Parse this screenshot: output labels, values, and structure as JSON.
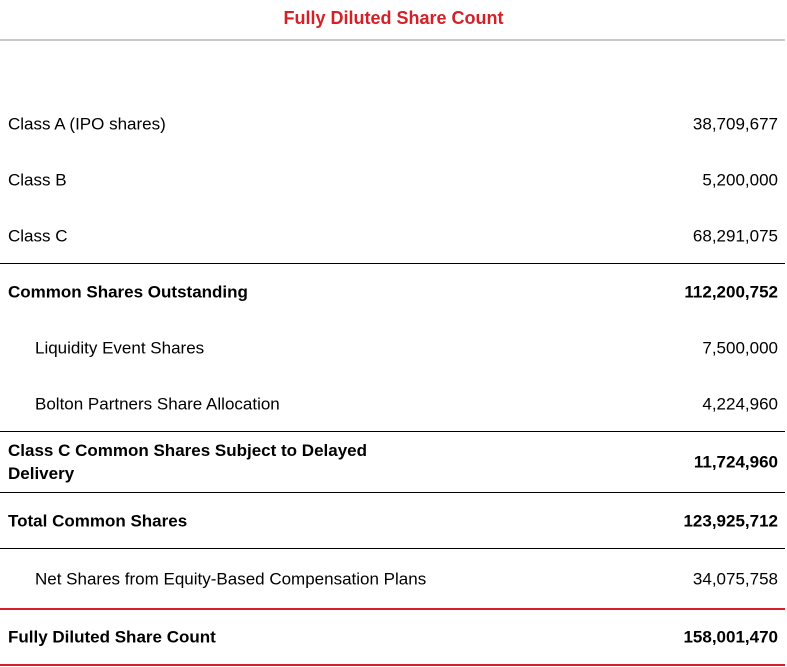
{
  "header": {
    "title": "Fully Diluted Share Count"
  },
  "table": {
    "rows": [
      [
        "Class A (IPO shares)",
        "38,709,677"
      ],
      [
        "Class B",
        "5,200,000"
      ],
      [
        "Class C",
        "68,291,075"
      ],
      [
        "Common Shares Outstanding",
        "112,200,752"
      ],
      [
        "Liquidity Event Shares",
        "7,500,000"
      ],
      [
        "Bolton Partners Share Allocation",
        "4,224,960"
      ],
      [
        "Class C Common Shares Subject to Delayed Delivery",
        "11,724,960"
      ],
      [
        "Total Common Shares",
        "123,925,712"
      ],
      [
        "Net Shares from Equity-Based Compensation Plans",
        "34,075,758"
      ],
      [
        "Fully Diluted Share Count",
        "158,001,470"
      ]
    ]
  }
}
